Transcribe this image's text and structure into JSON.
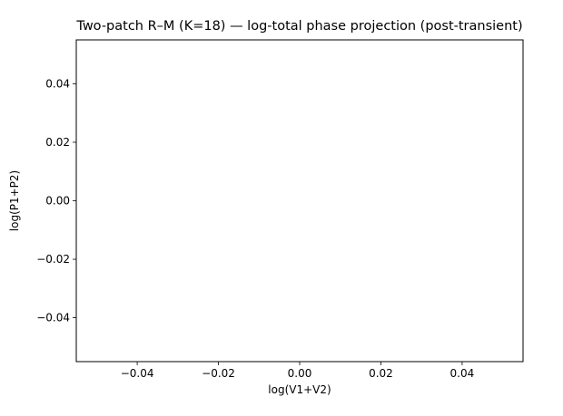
{
  "chart_data": {
    "type": "line",
    "title": "Two-patch R–M (K=18) — log-total phase projection (post-transient)",
    "xlabel": "log(V1+V2)",
    "ylabel": "log(P1+P2)",
    "xlim": [
      -0.055,
      0.055
    ],
    "ylim": [
      -0.055,
      0.055
    ],
    "xticks": [
      -0.04,
      -0.02,
      0.0,
      0.02,
      0.04
    ],
    "yticks": [
      -0.04,
      -0.02,
      0.0,
      0.02,
      0.04
    ],
    "xtick_labels": [
      "−0.04",
      "−0.02",
      "0.00",
      "0.02",
      "0.04"
    ],
    "ytick_labels": [
      "−0.04",
      "−0.02",
      "0.00",
      "0.02",
      "0.04"
    ],
    "grid": false,
    "series": []
  }
}
